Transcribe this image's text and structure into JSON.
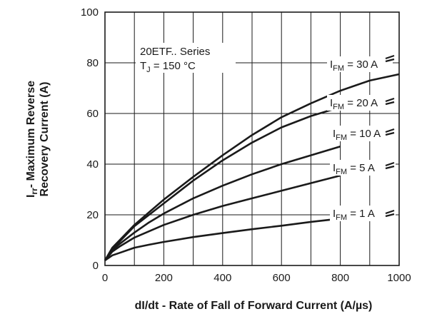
{
  "chart_data": {
    "type": "line",
    "xlabel": "dI/dt - Rate of Fall of Forward Current (A/µs)",
    "ylabel_line1": "- Maximum Reverse",
    "ylabel_line2": "Recovery Current (A)",
    "ylabel_symbol": "I",
    "ylabel_symbol_sub": "rr",
    "xlim": [
      0,
      1000
    ],
    "ylim": [
      0,
      100
    ],
    "xticks": [
      "0",
      "200",
      "400",
      "600",
      "800",
      "1000"
    ],
    "yticks": [
      "0",
      "20",
      "40",
      "60",
      "80",
      "100"
    ],
    "grid": true,
    "annotation_line1": "20ETF.. Series",
    "annotation_line2": "T",
    "annotation_line2_sub": "J",
    "annotation_line2_rest": " = 150 °C",
    "line_color": "#1a1a1a",
    "series": [
      {
        "name": "I_FM = 30 A",
        "label_main": "I",
        "label_sub": "FM",
        "label_rest": " = 30 A",
        "x": [
          0,
          25,
          50,
          100,
          150,
          200,
          300,
          400,
          500,
          600,
          700,
          800,
          900,
          1000
        ],
        "values": [
          2,
          7,
          10,
          16,
          21,
          26,
          35,
          43.5,
          51.5,
          58.5,
          64,
          69,
          73,
          75.5
        ]
      },
      {
        "name": "I_FM = 20 A",
        "label_main": "I",
        "label_sub": "FM",
        "label_rest": " = 20 A",
        "x": [
          0,
          25,
          50,
          100,
          150,
          200,
          300,
          400,
          500,
          600,
          700,
          800
        ],
        "values": [
          2,
          6.5,
          9.5,
          15.5,
          20,
          24.5,
          33.5,
          41.5,
          48.5,
          54.5,
          59,
          62.5
        ]
      },
      {
        "name": "I_FM = 10 A",
        "label_main": "I",
        "label_sub": "FM",
        "label_rest": " = 10 A",
        "x": [
          0,
          25,
          50,
          100,
          150,
          200,
          300,
          400,
          500,
          600,
          700,
          800
        ],
        "values": [
          2,
          6,
          8.5,
          13,
          17,
          20.5,
          26.5,
          31.5,
          36,
          40,
          43.5,
          47
        ]
      },
      {
        "name": "I_FM = 5 A",
        "label_main": "I",
        "label_sub": "FM",
        "label_rest": " = 5 A",
        "x": [
          0,
          25,
          50,
          100,
          150,
          200,
          300,
          400,
          500,
          600,
          700,
          800
        ],
        "values": [
          2,
          5.5,
          7.5,
          11,
          13.5,
          16,
          20,
          23.5,
          26.5,
          29.5,
          32.5,
          35.5
        ]
      },
      {
        "name": "I_FM = 1 A",
        "label_main": "I",
        "label_sub": "FM",
        "label_rest": " = 1 A",
        "x": [
          0,
          25,
          50,
          100,
          150,
          200,
          300,
          400,
          500,
          600,
          700,
          800
        ],
        "values": [
          2,
          4,
          5,
          7,
          8.2,
          9.3,
          11.2,
          12.8,
          14.3,
          15.7,
          17.2,
          18.5
        ]
      }
    ]
  }
}
